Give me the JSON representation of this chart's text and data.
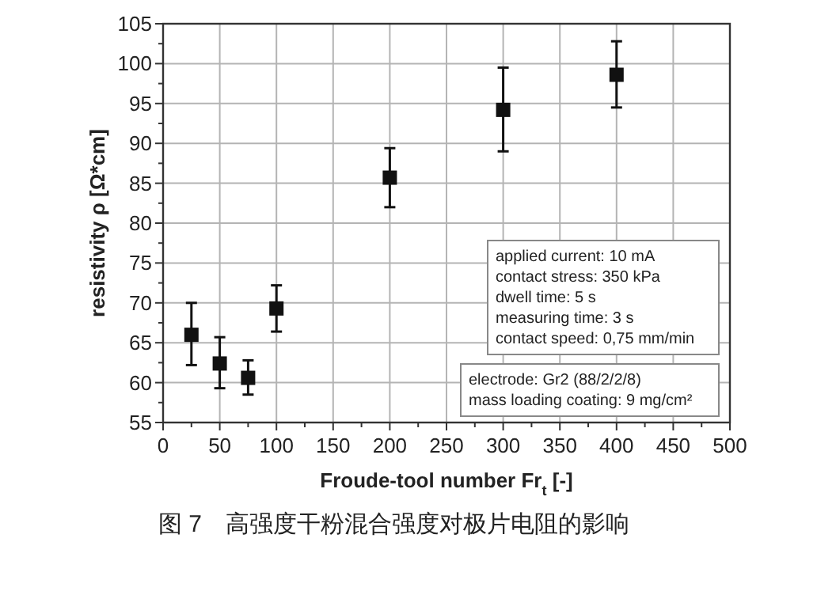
{
  "chart_data": {
    "type": "scatter",
    "x": [
      25,
      50,
      75,
      100,
      200,
      300,
      400
    ],
    "series": [
      {
        "color": "#111111",
        "values": [
          66,
          62.4,
          60.6,
          69.3,
          85.7,
          94.2,
          98.6
        ],
        "errors": [
          [
            62.2,
            70
          ],
          [
            59.3,
            65.7
          ],
          [
            58.5,
            62.8
          ],
          [
            66.4,
            72.2
          ],
          [
            82,
            89.4
          ],
          [
            89,
            99.5
          ],
          [
            94.5,
            102.8
          ]
        ]
      }
    ],
    "marker": "square",
    "xlabel": "Froude-tool number Fr$_{t}$ [-]",
    "ylabel": "resistivity ρ [Ω*cm]",
    "xlim": [
      0,
      500
    ],
    "xticks": [
      0,
      50,
      100,
      150,
      200,
      250,
      300,
      350,
      400,
      450,
      500
    ],
    "ylim": [
      55,
      105
    ],
    "yticks": [
      55,
      60,
      65,
      70,
      75,
      80,
      85,
      90,
      95,
      100,
      105
    ],
    "grid": true,
    "annotations": [
      "applied current: 10 mA\ncontact stress: 350 kPa\ndwell time: 5 s\nmeasuring time: 3 s\ncontact speed: 0,75 mm/min",
      "electrode: Gr2 (88/2/2/8)\nmass loading coating: 9 mg/cm²",
      "图 7　高强度干粉混合强度对极片电阻的影响"
    ]
  }
}
